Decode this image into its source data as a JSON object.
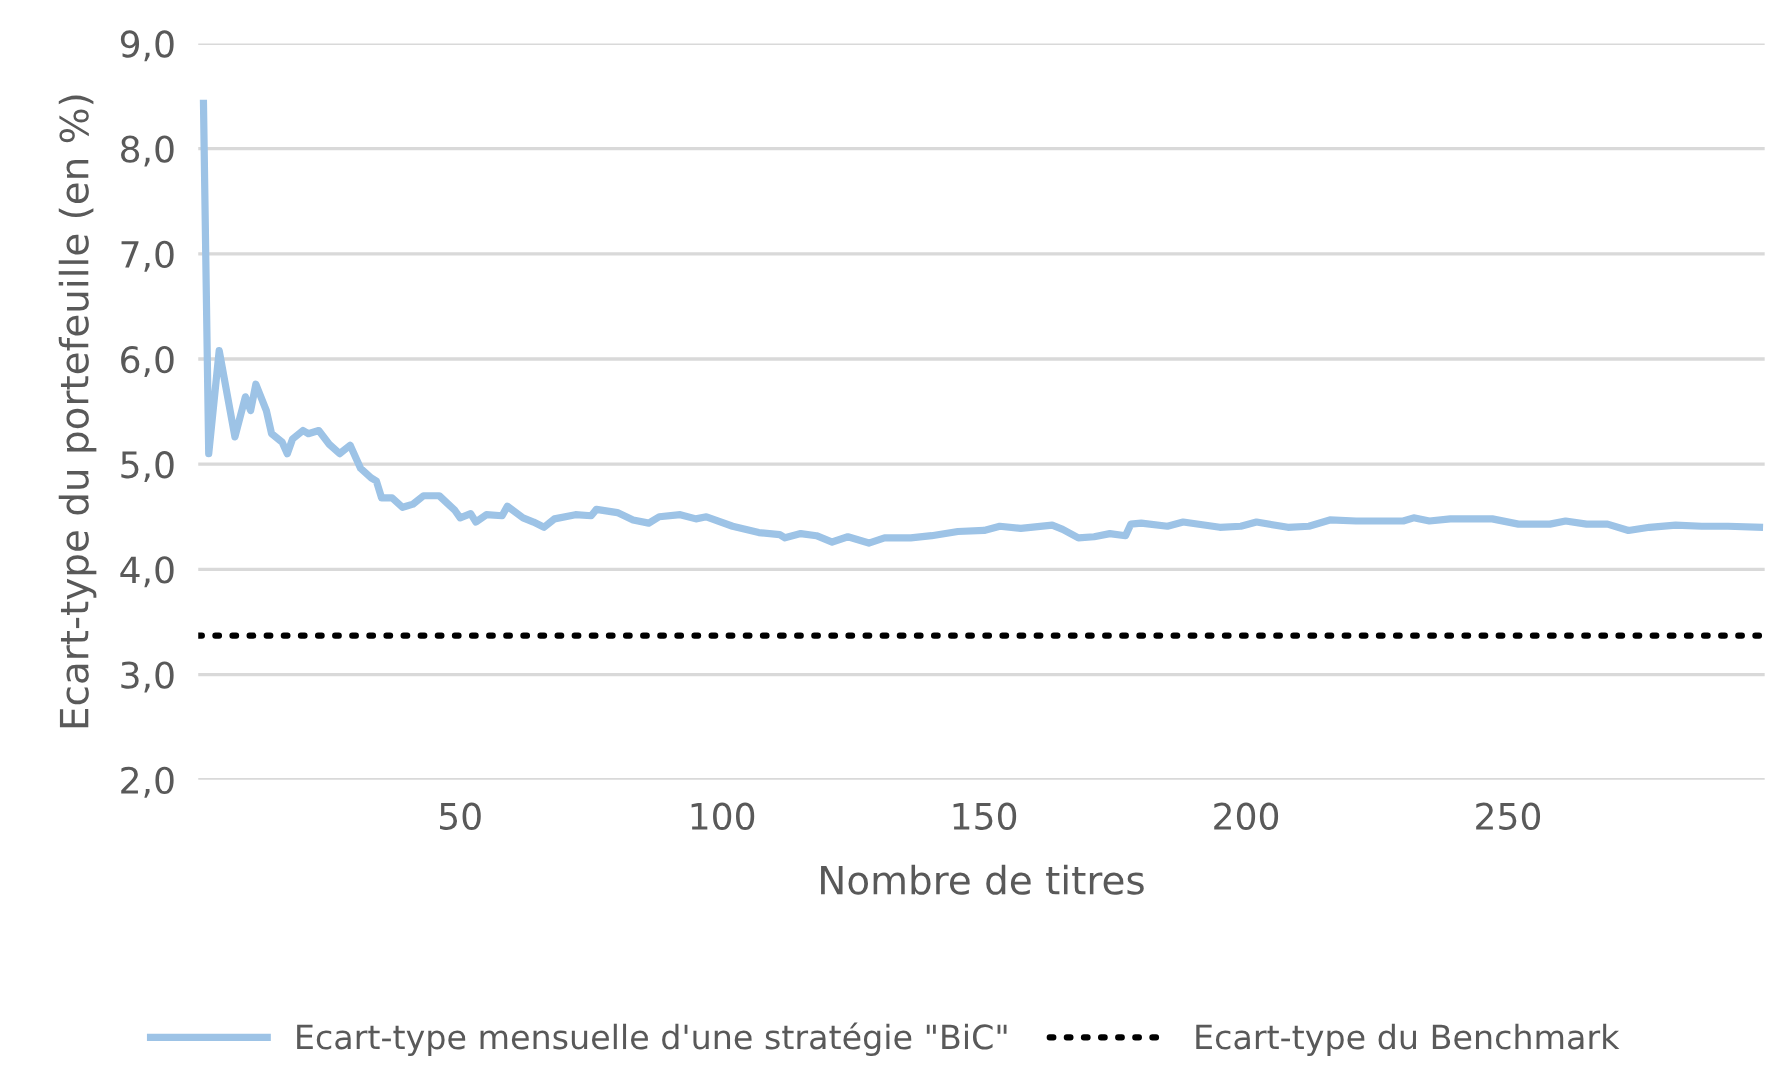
{
  "chart_data": {
    "type": "line",
    "xlabel": "Nombre de titres",
    "ylabel": "Ecart-type du portefeuille (en %)",
    "xlim": [
      0,
      299
    ],
    "xticks": [
      50,
      100,
      150,
      200,
      250
    ],
    "ylim": [
      2,
      9
    ],
    "yticks": [
      {
        "value": 2,
        "label": "2,0"
      },
      {
        "value": 3,
        "label": "3,0"
      },
      {
        "value": 4,
        "label": "4,0"
      },
      {
        "value": 5,
        "label": "5,0"
      },
      {
        "value": 6,
        "label": "6,0"
      },
      {
        "value": 7,
        "label": "7,0"
      },
      {
        "value": 8,
        "label": "8,0"
      },
      {
        "value": 9,
        "label": "9,0"
      }
    ],
    "grid": "y",
    "legend": "bottom",
    "series": [
      {
        "name": "Ecart-type mensuelle d'une stratégie \"BiC\"",
        "color": "#9dc3e6",
        "line_style": "solid",
        "x": [
          1,
          2,
          4,
          7,
          9,
          10,
          11,
          13,
          14,
          16,
          17,
          18,
          20,
          21,
          23,
          25,
          27,
          29,
          31,
          33,
          34,
          35,
          37,
          39,
          41,
          43,
          46,
          49,
          50,
          52,
          53,
          55,
          58,
          59,
          62,
          64,
          66,
          68,
          72,
          75,
          76,
          80,
          83,
          86,
          88,
          92,
          95,
          97,
          102,
          107,
          111,
          112,
          115,
          118,
          121,
          124,
          128,
          131,
          136,
          140,
          145,
          150,
          153,
          157,
          163,
          165,
          168,
          171,
          174,
          177,
          178,
          180,
          185,
          188,
          195,
          199,
          202,
          208,
          212,
          216,
          221,
          226,
          230,
          232,
          235,
          239,
          244,
          247,
          252,
          258,
          261,
          265,
          269,
          273,
          277,
          282,
          287,
          292,
          298
        ],
        "values": [
          8.43,
          5.1,
          6.08,
          5.26,
          5.64,
          5.51,
          5.76,
          5.51,
          5.29,
          5.21,
          5.1,
          5.24,
          5.32,
          5.29,
          5.32,
          5.19,
          5.1,
          5.18,
          4.96,
          4.87,
          4.84,
          4.68,
          4.68,
          4.59,
          4.62,
          4.7,
          4.7,
          4.56,
          4.49,
          4.53,
          4.45,
          4.52,
          4.51,
          4.6,
          4.49,
          4.45,
          4.4,
          4.48,
          4.52,
          4.51,
          4.57,
          4.54,
          4.47,
          4.44,
          4.5,
          4.52,
          4.48,
          4.5,
          4.41,
          4.35,
          4.33,
          4.3,
          4.34,
          4.32,
          4.26,
          4.31,
          4.25,
          4.3,
          4.3,
          4.32,
          4.36,
          4.37,
          4.41,
          4.39,
          4.42,
          4.38,
          4.3,
          4.31,
          4.34,
          4.32,
          4.43,
          4.44,
          4.41,
          4.45,
          4.4,
          4.41,
          4.45,
          4.4,
          4.41,
          4.47,
          4.46,
          4.46,
          4.46,
          4.49,
          4.46,
          4.48,
          4.48,
          4.48,
          4.43,
          4.43,
          4.46,
          4.43,
          4.43,
          4.37,
          4.4,
          4.42,
          4.41,
          4.41,
          4.4
        ]
      },
      {
        "name": "Ecart-type du Benchmark",
        "color": "#000000",
        "line_style": "dotted",
        "x": [
          0,
          299
        ],
        "values": [
          3.37,
          3.37
        ]
      }
    ]
  }
}
